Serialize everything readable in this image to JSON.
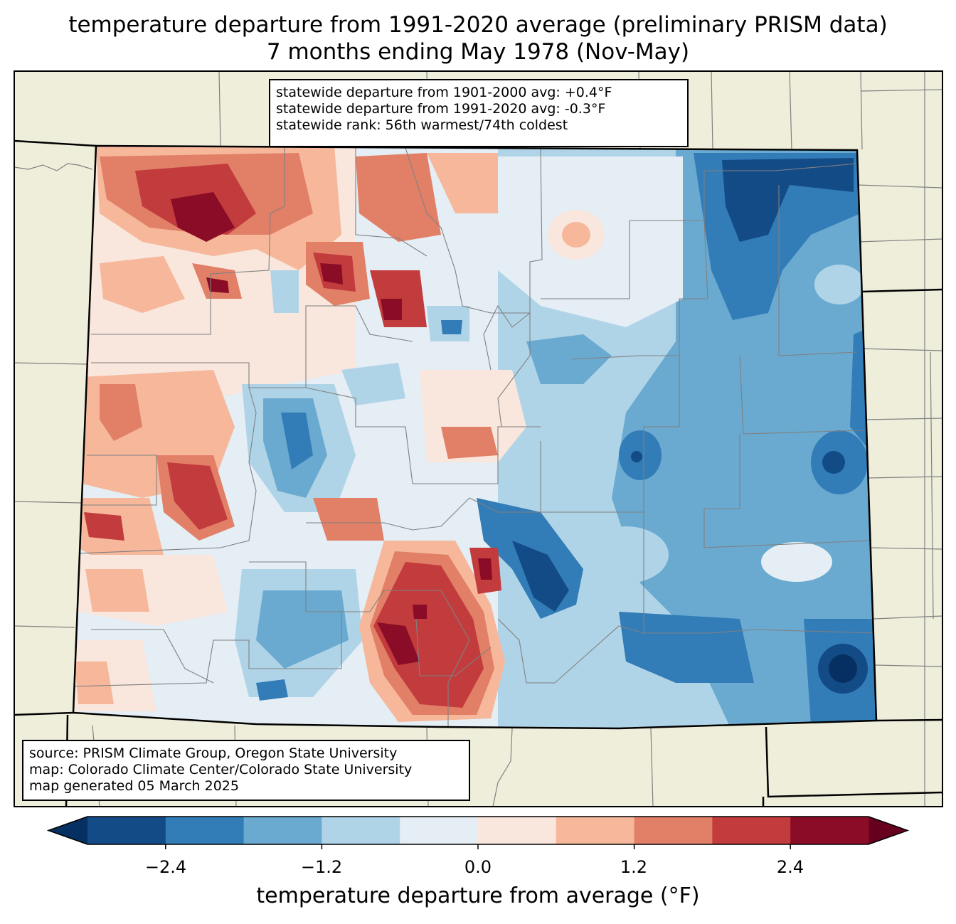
{
  "title": {
    "line1": "temperature departure from 1991-2020 average (preliminary PRISM data)",
    "line2": "7 months ending May 1978 (Nov-May)"
  },
  "stats": {
    "line1": "statewide departure from 1901-2000 avg: +0.4°F",
    "line2": "statewide departure from 1991-2020 avg: -0.3°F",
    "line3": "statewide rank: 56th warmest/74th coldest"
  },
  "source": {
    "line1": "source: PRISM Climate Group, Oregon State University",
    "line2": "map: Colorado Climate Center/Colorado State University",
    "line3": "map generated 05 March 2025"
  },
  "colorbar": {
    "label": "temperature departure from average (°F)",
    "ticks": [
      "−2.4",
      "−1.2",
      "0.0",
      "1.2",
      "2.4"
    ],
    "tick_values": [
      -2.4,
      -1.2,
      0.0,
      1.2,
      2.4
    ],
    "range": [
      -3.0,
      3.0
    ],
    "bins": [
      {
        "min": -3.0,
        "max": -2.4,
        "color": "#134b87"
      },
      {
        "min": -2.4,
        "max": -1.8,
        "color": "#327cb7"
      },
      {
        "min": -1.8,
        "max": -1.2,
        "color": "#6aaad0"
      },
      {
        "min": -1.2,
        "max": -0.6,
        "color": "#b0d4e7"
      },
      {
        "min": -0.6,
        "max": 0.0,
        "color": "#e4eef4"
      },
      {
        "min": 0.0,
        "max": 0.6,
        "color": "#f9e6dd"
      },
      {
        "min": 0.6,
        "max": 1.2,
        "color": "#f6b79b"
      },
      {
        "min": 1.2,
        "max": 1.8,
        "color": "#e27f67"
      },
      {
        "min": 1.8,
        "max": 2.4,
        "color": "#c23c3d"
      },
      {
        "min": 2.4,
        "max": 3.0,
        "color": "#8a0c26"
      }
    ],
    "under_color": "#053061",
    "over_color": "#67001f"
  },
  "colors": {
    "land": "#efeedb",
    "county_line": "#808080",
    "state_line": "#000000"
  }
}
